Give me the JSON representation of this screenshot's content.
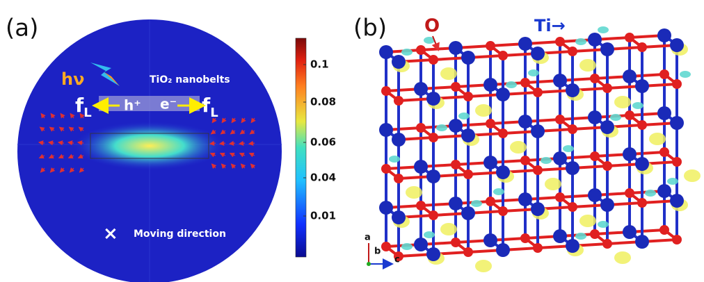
{
  "panels": [
    {
      "label": "(a)",
      "annotations": {
        "photon": "hν",
        "material": "TiO₂ nanobelts",
        "hole": "h⁺",
        "electron": "e⁻",
        "force_left": {
          "main": "f",
          "sub": "L"
        },
        "force_right": {
          "main": "f",
          "sub": "L"
        },
        "marker": "×",
        "caption": "Moving direction"
      },
      "colorbar": {
        "ticks": [
          "0.1",
          "0.08",
          "0.06",
          "0.04",
          "0.01"
        ]
      }
    },
    {
      "label": "(b)",
      "atoms": {
        "oxygen": "O",
        "titanium": "Ti→"
      },
      "axes": [
        "a",
        "b",
        "c"
      ]
    }
  ]
}
